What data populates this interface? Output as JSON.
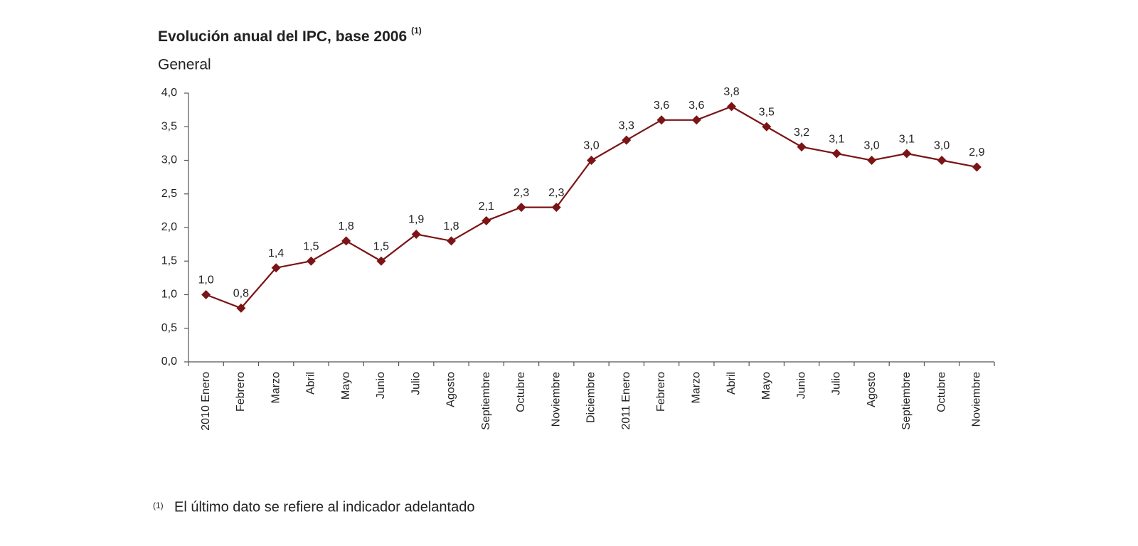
{
  "chart_data": {
    "type": "line",
    "title": "Evolución anual del IPC, base 2006",
    "title_note": "(1)",
    "subtitle": "General",
    "footnote_mark": "(1)",
    "footnote": "El último dato se refiere al indicador adelantado",
    "categories": [
      "2010 Enero",
      "Febrero",
      "Marzo",
      "Abril",
      "Mayo",
      "Junio",
      "Julio",
      "Agosto",
      "Septiembre",
      "Octubre",
      "Noviembre",
      "Diciembre",
      "2011 Enero",
      "Febrero",
      "Marzo",
      "Abril",
      "Mayo",
      "Junio",
      "Julio",
      "Agosto",
      "Septiembre",
      "Octubre",
      "Noviembre"
    ],
    "values": [
      1.0,
      0.8,
      1.4,
      1.5,
      1.8,
      1.5,
      1.9,
      1.8,
      2.1,
      2.3,
      2.3,
      3.0,
      3.3,
      3.6,
      3.6,
      3.8,
      3.5,
      3.2,
      3.1,
      3.0,
      3.1,
      3.0,
      2.9
    ],
    "value_labels": [
      "1,0",
      "0,8",
      "1,4",
      "1,5",
      "1,8",
      "1,5",
      "1,9",
      "1,8",
      "2,1",
      "2,3",
      "2,3",
      "3,0",
      "3,3",
      "3,6",
      "3,6",
      "3,8",
      "3,5",
      "3,2",
      "3,1",
      "3,0",
      "3,1",
      "3,0",
      "2,9"
    ],
    "color": "#7b1416",
    "ylim": [
      0,
      4
    ],
    "yticks": [
      {
        "value": 0,
        "label": "0,0"
      },
      {
        "value": 0.5,
        "label": "0,5"
      },
      {
        "value": 1,
        "label": "1,0"
      },
      {
        "value": 1.5,
        "label": "1,5"
      },
      {
        "value": 2,
        "label": "2,0"
      },
      {
        "value": 2.5,
        "label": "2,5"
      },
      {
        "value": 3,
        "label": "3,0"
      },
      {
        "value": 3.5,
        "label": "3,5"
      },
      {
        "value": 4,
        "label": "4,0"
      }
    ],
    "grid": false
  }
}
